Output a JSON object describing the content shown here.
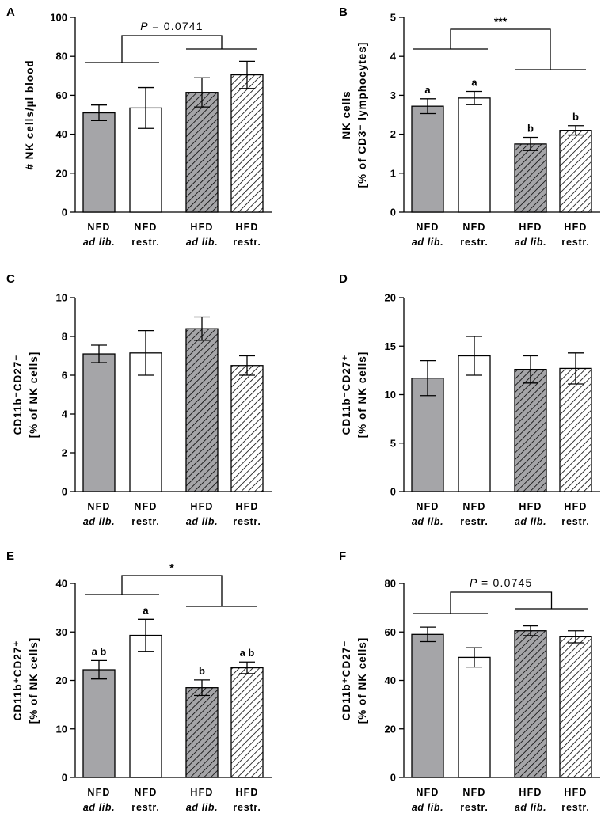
{
  "colors": {
    "gray_fill": "#a5a5a8",
    "white_fill": "#ffffff",
    "stroke": "#000000"
  },
  "chart_data": [
    {
      "type": "bar",
      "panel": "A",
      "ylabel_lines": [
        "# NK cells/µl blood"
      ],
      "ylim": [
        0,
        100
      ],
      "yticks": [
        0,
        20,
        40,
        60,
        80,
        100
      ],
      "categories": [
        {
          "line1": "NFD",
          "line2": "ad lib.",
          "italic": true,
          "pattern": "gray"
        },
        {
          "line1": "NFD",
          "line2": "restr.",
          "italic": false,
          "pattern": "white"
        },
        {
          "line1": "HFD",
          "line2": "ad lib.",
          "italic": true,
          "pattern": "gray-hatch"
        },
        {
          "line1": "HFD",
          "line2": "restr.",
          "italic": false,
          "pattern": "white-hatch"
        }
      ],
      "values": [
        51,
        53.5,
        61.5,
        70.5
      ],
      "errors": [
        4,
        10.5,
        7.5,
        7
      ],
      "bar_letters": [
        "",
        "",
        "",
        ""
      ],
      "comparison": {
        "p_prefix": "P",
        "p_value": "= 0.0741",
        "sig": ""
      }
    },
    {
      "type": "bar",
      "panel": "B",
      "ylabel_lines": [
        "NK cells",
        "[% of CD3⁻ lymphocytes]"
      ],
      "ylim": [
        0,
        5
      ],
      "yticks": [
        0,
        1,
        2,
        3,
        4,
        5
      ],
      "categories": [
        {
          "line1": "NFD",
          "line2": "ad lib.",
          "italic": true,
          "pattern": "gray"
        },
        {
          "line1": "NFD",
          "line2": "restr.",
          "italic": false,
          "pattern": "white"
        },
        {
          "line1": "HFD",
          "line2": "ad lib.",
          "italic": true,
          "pattern": "gray-hatch"
        },
        {
          "line1": "HFD",
          "line2": "restr.",
          "italic": false,
          "pattern": "white-hatch"
        }
      ],
      "values": [
        2.72,
        2.93,
        1.75,
        2.1
      ],
      "errors": [
        0.19,
        0.17,
        0.17,
        0.12
      ],
      "bar_letters": [
        "a",
        "a",
        "b",
        "b"
      ],
      "comparison": {
        "p_prefix": "",
        "p_value": "",
        "sig": "***"
      }
    },
    {
      "type": "bar",
      "panel": "C",
      "ylabel_lines": [
        "CD11b⁻CD27⁻",
        "[% of NK cells]"
      ],
      "ylim": [
        0,
        10
      ],
      "yticks": [
        0,
        2,
        4,
        6,
        8,
        10
      ],
      "categories": [
        {
          "line1": "NFD",
          "line2": "ad lib.",
          "italic": true,
          "pattern": "gray"
        },
        {
          "line1": "NFD",
          "line2": "restr.",
          "italic": false,
          "pattern": "white"
        },
        {
          "line1": "HFD",
          "line2": "ad lib.",
          "italic": true,
          "pattern": "gray-hatch"
        },
        {
          "line1": "HFD",
          "line2": "restr.",
          "italic": false,
          "pattern": "white-hatch"
        }
      ],
      "values": [
        7.1,
        7.15,
        8.4,
        6.5
      ],
      "errors": [
        0.45,
        1.15,
        0.6,
        0.5
      ],
      "bar_letters": [
        "",
        "",
        "",
        ""
      ],
      "comparison": null
    },
    {
      "type": "bar",
      "panel": "D",
      "ylabel_lines": [
        "CD11b⁻CD27⁺",
        "[% of NK cells]"
      ],
      "ylim": [
        0,
        20
      ],
      "yticks": [
        0,
        5,
        10,
        15,
        20
      ],
      "categories": [
        {
          "line1": "NFD",
          "line2": "ad lib.",
          "italic": true,
          "pattern": "gray"
        },
        {
          "line1": "NFD",
          "line2": "restr.",
          "italic": false,
          "pattern": "white"
        },
        {
          "line1": "HFD",
          "line2": "ad lib.",
          "italic": true,
          "pattern": "gray-hatch"
        },
        {
          "line1": "HFD",
          "line2": "restr.",
          "italic": false,
          "pattern": "white-hatch"
        }
      ],
      "values": [
        11.7,
        14,
        12.6,
        12.7
      ],
      "errors": [
        1.8,
        2,
        1.4,
        1.6
      ],
      "bar_letters": [
        "",
        "",
        "",
        ""
      ],
      "comparison": null
    },
    {
      "type": "bar",
      "panel": "E",
      "ylabel_lines": [
        "CD11b⁺CD27⁺",
        "[% of NK cells]"
      ],
      "ylim": [
        0,
        40
      ],
      "yticks": [
        0,
        10,
        20,
        30,
        40
      ],
      "categories": [
        {
          "line1": "NFD",
          "line2": "ad lib.",
          "italic": true,
          "pattern": "gray"
        },
        {
          "line1": "NFD",
          "line2": "restr.",
          "italic": false,
          "pattern": "white"
        },
        {
          "line1": "HFD",
          "line2": "ad lib.",
          "italic": true,
          "pattern": "gray-hatch"
        },
        {
          "line1": "HFD",
          "line2": "restr.",
          "italic": false,
          "pattern": "white-hatch"
        }
      ],
      "values": [
        22.2,
        29.3,
        18.5,
        22.6
      ],
      "errors": [
        1.9,
        3.3,
        1.6,
        1.2
      ],
      "bar_letters": [
        "ab",
        "a",
        "b",
        "ab"
      ],
      "comparison": {
        "p_prefix": "",
        "p_value": "",
        "sig": "*"
      }
    },
    {
      "type": "bar",
      "panel": "F",
      "ylabel_lines": [
        "CD11b⁺CD27⁻",
        "[% of NK cells]"
      ],
      "ylim": [
        0,
        80
      ],
      "yticks": [
        0,
        20,
        40,
        60,
        80
      ],
      "categories": [
        {
          "line1": "NFD",
          "line2": "ad lib.",
          "italic": true,
          "pattern": "gray"
        },
        {
          "line1": "NFD",
          "line2": "restr.",
          "italic": false,
          "pattern": "white"
        },
        {
          "line1": "HFD",
          "line2": "ad lib.",
          "italic": true,
          "pattern": "gray-hatch"
        },
        {
          "line1": "HFD",
          "line2": "restr.",
          "italic": false,
          "pattern": "white-hatch"
        }
      ],
      "values": [
        59,
        49.5,
        60.5,
        58
      ],
      "errors": [
        3,
        4,
        2,
        2.5
      ],
      "bar_letters": [
        "",
        "",
        "",
        ""
      ],
      "comparison": {
        "p_prefix": "P",
        "p_value": "= 0.0745",
        "sig": ""
      }
    }
  ]
}
